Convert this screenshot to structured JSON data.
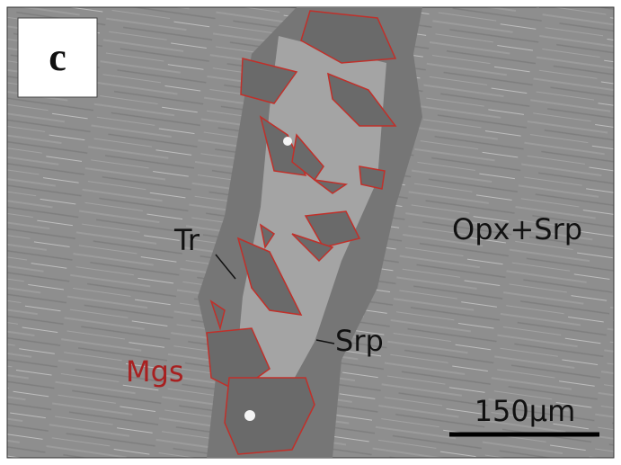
{
  "panel_label": "c",
  "labels": {
    "tr": "Tr",
    "opx_srp": "Opx+Srp",
    "srp": "Srp",
    "mgs": "Mgs"
  },
  "scale_bar": {
    "label": "150µm"
  }
}
